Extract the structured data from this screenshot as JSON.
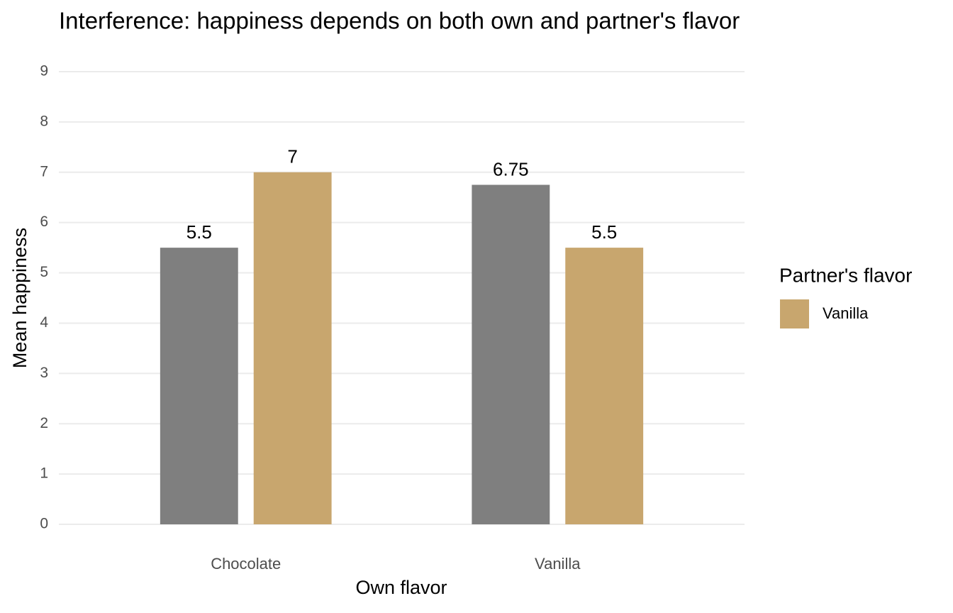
{
  "chart_data": {
    "type": "bar",
    "title": "Interference: happiness depends on both own and partner's flavor",
    "x_label": "Own flavor",
    "y_label": "Mean happiness",
    "categories": [
      "Chocolate",
      "Vanilla"
    ],
    "series": [
      {
        "color": "#7f7f7f",
        "values": [
          5.5,
          6.75
        ]
      },
      {
        "name": "Vanilla",
        "color": "#c8a66e",
        "values": [
          7,
          5.5
        ]
      }
    ],
    "legend_title": "Partner's flavor",
    "legend_position": "right",
    "ylim": [
      0,
      9
    ],
    "yticks": [
      0,
      1,
      2,
      3,
      4,
      5,
      6,
      7,
      8,
      9
    ],
    "grid": true
  }
}
